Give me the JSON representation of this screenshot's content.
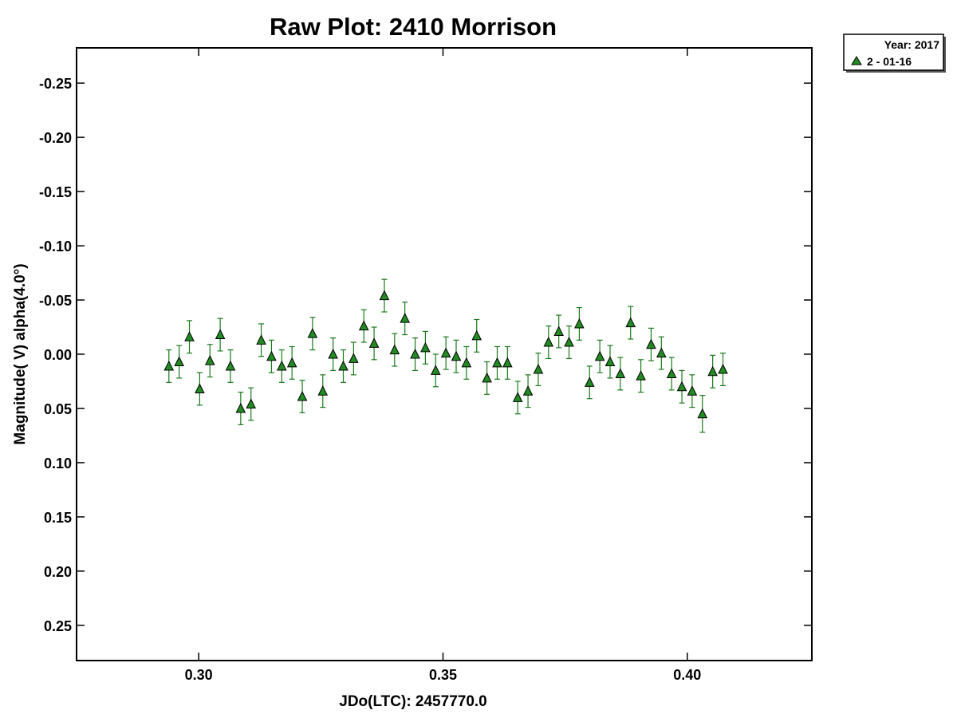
{
  "chart_data": {
    "type": "scatter",
    "title": "Raw Plot: 2410 Morrison",
    "xlabel": "JDo(LTC): 2457770.0",
    "ylabel": "Magnitude( V) alpha(4.0°)",
    "xlim": [
      0.275,
      0.4255
    ],
    "ylim": [
      0.2825,
      -0.2825
    ],
    "y_inverted": true,
    "grid": false,
    "legend_placement": "top-right outside",
    "x_ticks": [
      0.3,
      0.35,
      0.4
    ],
    "x_tick_labels": [
      "0.30",
      "0.35",
      "0.40"
    ],
    "y_ticks": [
      -0.25,
      -0.2,
      -0.15,
      -0.1,
      -0.05,
      0.0,
      0.05,
      0.1,
      0.15,
      0.2,
      0.25
    ],
    "y_tick_labels": [
      "-0.25",
      "-0.20",
      "-0.15",
      "-0.10",
      "-0.05",
      "0.00",
      "0.05",
      "0.10",
      "0.15",
      "0.20",
      "0.25"
    ],
    "legend": {
      "header": "Year: 2017",
      "entries": [
        "2 - 01-16"
      ]
    },
    "colors": {
      "marker_fill": "#228B22",
      "marker_edge": "#000000",
      "errorbar": "#1a7a1a"
    },
    "series": [
      {
        "name": "2 - 01-16",
        "marker": "triangle",
        "points": [
          {
            "x": 0.2939,
            "y": 0.011,
            "err": 0.015
          },
          {
            "x": 0.296,
            "y": 0.007,
            "err": 0.015
          },
          {
            "x": 0.2981,
            "y": -0.016,
            "err": 0.015
          },
          {
            "x": 0.3002,
            "y": 0.032,
            "err": 0.015
          },
          {
            "x": 0.3023,
            "y": 0.006,
            "err": 0.015
          },
          {
            "x": 0.3044,
            "y": -0.018,
            "err": 0.015
          },
          {
            "x": 0.3065,
            "y": 0.011,
            "err": 0.015
          },
          {
            "x": 0.3086,
            "y": 0.05,
            "err": 0.015
          },
          {
            "x": 0.3107,
            "y": 0.046,
            "err": 0.015
          },
          {
            "x": 0.3128,
            "y": -0.013,
            "err": 0.015
          },
          {
            "x": 0.3149,
            "y": 0.002,
            "err": 0.015
          },
          {
            "x": 0.317,
            "y": 0.011,
            "err": 0.015
          },
          {
            "x": 0.3191,
            "y": 0.008,
            "err": 0.015
          },
          {
            "x": 0.3212,
            "y": 0.039,
            "err": 0.015
          },
          {
            "x": 0.3233,
            "y": -0.019,
            "err": 0.015
          },
          {
            "x": 0.3254,
            "y": 0.034,
            "err": 0.015
          },
          {
            "x": 0.3275,
            "y": 0.0,
            "err": 0.015
          },
          {
            "x": 0.3296,
            "y": 0.011,
            "err": 0.015
          },
          {
            "x": 0.3317,
            "y": 0.004,
            "err": 0.015
          },
          {
            "x": 0.3338,
            "y": -0.026,
            "err": 0.015
          },
          {
            "x": 0.3359,
            "y": -0.01,
            "err": 0.015
          },
          {
            "x": 0.338,
            "y": -0.054,
            "err": 0.015
          },
          {
            "x": 0.3401,
            "y": -0.004,
            "err": 0.015
          },
          {
            "x": 0.3422,
            "y": -0.033,
            "err": 0.015
          },
          {
            "x": 0.3443,
            "y": 0.0,
            "err": 0.015
          },
          {
            "x": 0.3464,
            "y": -0.006,
            "err": 0.015
          },
          {
            "x": 0.3485,
            "y": 0.015,
            "err": 0.015
          },
          {
            "x": 0.3506,
            "y": -0.001,
            "err": 0.015
          },
          {
            "x": 0.3527,
            "y": 0.002,
            "err": 0.015
          },
          {
            "x": 0.3548,
            "y": 0.008,
            "err": 0.015
          },
          {
            "x": 0.3569,
            "y": -0.017,
            "err": 0.015
          },
          {
            "x": 0.359,
            "y": 0.022,
            "err": 0.015
          },
          {
            "x": 0.3611,
            "y": 0.008,
            "err": 0.015
          },
          {
            "x": 0.3632,
            "y": 0.008,
            "err": 0.015
          },
          {
            "x": 0.3653,
            "y": 0.04,
            "err": 0.015
          },
          {
            "x": 0.3674,
            "y": 0.034,
            "err": 0.015
          },
          {
            "x": 0.3695,
            "y": 0.014,
            "err": 0.015
          },
          {
            "x": 0.3716,
            "y": -0.011,
            "err": 0.015
          },
          {
            "x": 0.3737,
            "y": -0.021,
            "err": 0.015
          },
          {
            "x": 0.3758,
            "y": -0.011,
            "err": 0.015
          },
          {
            "x": 0.3779,
            "y": -0.028,
            "err": 0.015
          },
          {
            "x": 0.38,
            "y": 0.026,
            "err": 0.015
          },
          {
            "x": 0.3821,
            "y": 0.002,
            "err": 0.015
          },
          {
            "x": 0.3842,
            "y": 0.007,
            "err": 0.015
          },
          {
            "x": 0.3863,
            "y": 0.018,
            "err": 0.015
          },
          {
            "x": 0.3884,
            "y": -0.029,
            "err": 0.015
          },
          {
            "x": 0.3905,
            "y": 0.02,
            "err": 0.015
          },
          {
            "x": 0.3926,
            "y": -0.009,
            "err": 0.015
          },
          {
            "x": 0.3947,
            "y": -0.001,
            "err": 0.015
          },
          {
            "x": 0.3968,
            "y": 0.018,
            "err": 0.015
          },
          {
            "x": 0.3989,
            "y": 0.03,
            "err": 0.015
          },
          {
            "x": 0.401,
            "y": 0.034,
            "err": 0.015
          },
          {
            "x": 0.4031,
            "y": 0.055,
            "err": 0.017
          },
          {
            "x": 0.4052,
            "y": 0.016,
            "err": 0.015
          },
          {
            "x": 0.4073,
            "y": 0.014,
            "err": 0.015
          }
        ]
      }
    ]
  }
}
